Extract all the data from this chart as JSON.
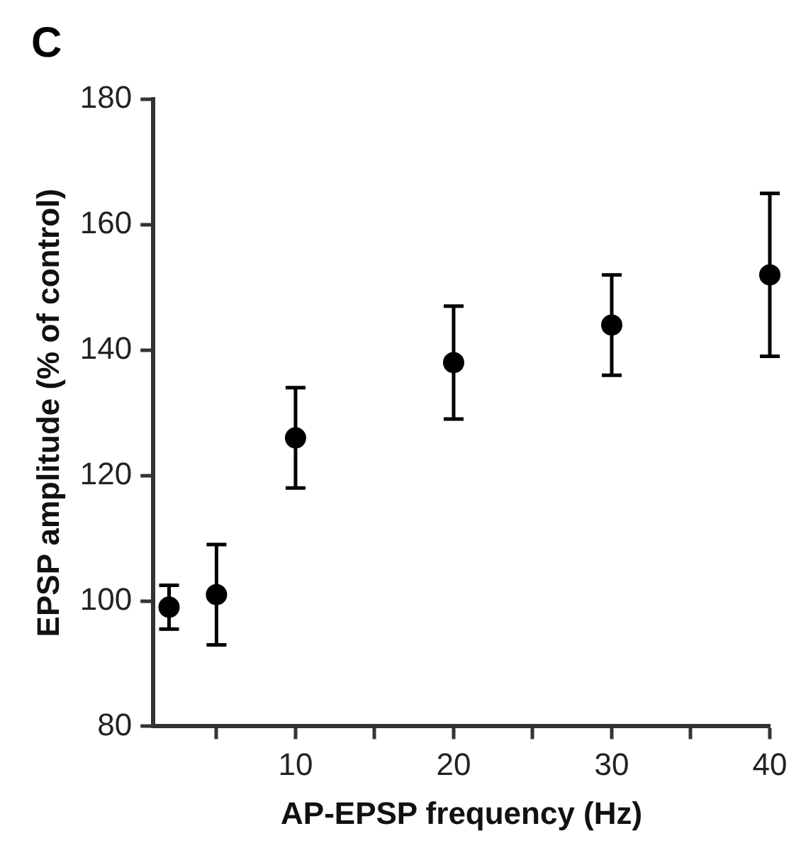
{
  "chart_data": {
    "type": "scatter",
    "xlabel": "AP-EPSP frequency (Hz)",
    "ylabel": "EPSP amplitude (% of control)",
    "annotations": [
      "C"
    ],
    "x": [
      2,
      5,
      10,
      20,
      30,
      40
    ],
    "series": [
      {
        "color": "#000000",
        "values": [
          99,
          101,
          126,
          138,
          144,
          152
        ],
        "errors": [
          3.5,
          8,
          8,
          9,
          8,
          13
        ]
      }
    ],
    "xlim": [
      1,
      40
    ],
    "xticks": [
      {
        "value": 5,
        "label": null
      },
      10,
      {
        "value": 15,
        "label": null
      },
      20,
      {
        "value": 25,
        "label": null
      },
      30,
      {
        "value": 35,
        "label": null
      },
      40
    ],
    "ylim": [
      80,
      180
    ],
    "yticks": [
      80,
      100,
      120,
      140,
      160,
      180
    ],
    "grid": false,
    "legend": false,
    "marker": "circle"
  }
}
